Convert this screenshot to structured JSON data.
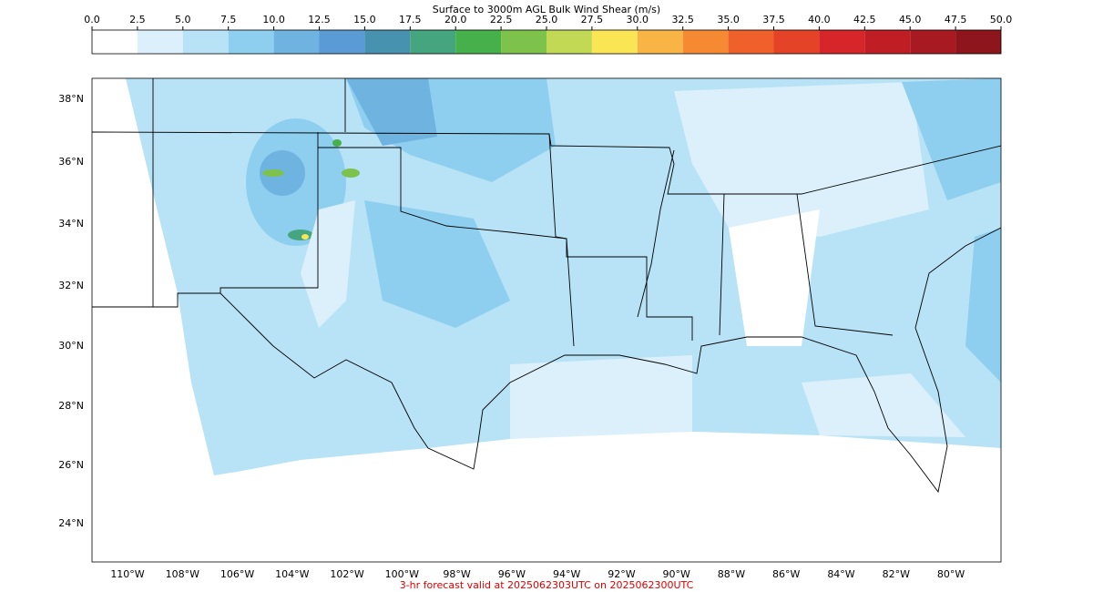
{
  "colorbar": {
    "title": "Surface to 3000m AGL Bulk Wind Shear (m/s)",
    "lim": [
      0,
      50
    ],
    "ticks": [
      {
        "value": 0,
        "label": "0.0"
      },
      2.5,
      {
        "value": 5,
        "label": "5.0"
      },
      7.5,
      {
        "value": 10,
        "label": "10.0"
      },
      12.5,
      {
        "value": 15,
        "label": "15.0"
      },
      17.5,
      {
        "value": 20,
        "label": "20.0"
      },
      22.5,
      {
        "value": 25,
        "label": "25.0"
      },
      27.5,
      {
        "value": 30,
        "label": "30.0"
      },
      32.5,
      {
        "value": 35,
        "label": "35.0"
      },
      37.5,
      {
        "value": 40,
        "label": "40.0"
      },
      42.5,
      {
        "value": 45,
        "label": "45.0"
      },
      47.5,
      {
        "value": 50,
        "label": "50.0"
      }
    ],
    "colors": [
      "#ffffff",
      "#dcf0fb",
      "#b8e2f6",
      "#8ecfef",
      "#6fb3e0",
      "#5b9bd5",
      "#4793af",
      "#45a57f",
      "#46b04a",
      "#7dc24b",
      "#c1d955",
      "#fae555",
      "#f8b545",
      "#f58a33",
      "#f0602b",
      "#e54327",
      "#d7262a",
      "#bf1e25",
      "#a81a22",
      "#8e151b"
    ]
  },
  "map": {
    "lat_labels": [
      "38°N",
      "36°N",
      "34°N",
      "32°N",
      "30°N",
      "28°N",
      "26°N",
      "24°N"
    ],
    "lon_labels": [
      "110°W",
      "108°W",
      "106°W",
      "104°W",
      "102°W",
      "100°W",
      "98°W",
      "96°W",
      "94°W",
      "92°W",
      "90°W",
      "88°W",
      "86°W",
      "84°W",
      "82°W",
      "80°W"
    ]
  },
  "footer": "3-hr forecast valid at 2025062303UTC on 2025062300UTC"
}
